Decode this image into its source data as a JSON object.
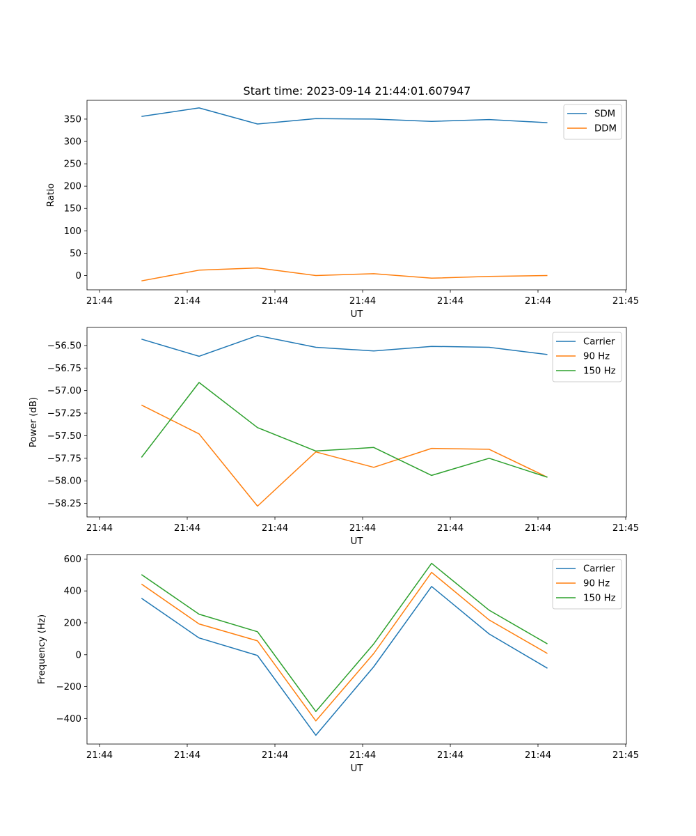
{
  "figure_title": "Start time: 2023-09-14 21:44:01.607947",
  "chart_data": [
    {
      "type": "line",
      "title": "Start time: 2023-09-14 21:44:01.607947",
      "xlabel": "UT",
      "ylabel": "Ratio",
      "x_tick_labels": [
        "21:44",
        "21:44",
        "21:44",
        "21:44",
        "21:44",
        "21:44",
        "21:45"
      ],
      "y_ticks": [
        0,
        50,
        100,
        150,
        200,
        250,
        300,
        350
      ],
      "y_tick_labels": [
        "0",
        "50",
        "100",
        "150",
        "200",
        "250",
        "300",
        "350"
      ],
      "ylim": [
        -32,
        392
      ],
      "legend_position": "top-right",
      "series": [
        {
          "name": "SDM",
          "color": "#1f77b4",
          "values": [
            356,
            375,
            339,
            351,
            350,
            345,
            349,
            342
          ]
        },
        {
          "name": "DDM",
          "color": "#ff7f0e",
          "values": [
            -12,
            12,
            17,
            0,
            4,
            -6,
            -2,
            0
          ]
        }
      ]
    },
    {
      "type": "line",
      "title": "",
      "xlabel": "UT",
      "ylabel": "Power (dB)",
      "x_tick_labels": [
        "21:44",
        "21:44",
        "21:44",
        "21:44",
        "21:44",
        "21:44",
        "21:45"
      ],
      "y_ticks": [
        -56.5,
        -56.75,
        -57.0,
        -57.25,
        -57.5,
        -57.75,
        -58.0,
        -58.25
      ],
      "y_tick_labels": [
        "−56.50",
        "−56.75",
        "−57.00",
        "−57.25",
        "−57.50",
        "−57.75",
        "−58.00",
        "−58.25"
      ],
      "ylim": [
        -58.4,
        -56.3
      ],
      "legend_position": "top-right",
      "series": [
        {
          "name": "Carrier",
          "color": "#1f77b4",
          "values": [
            -56.43,
            -56.62,
            -56.39,
            -56.52,
            -56.56,
            -56.51,
            -56.52,
            -56.6
          ]
        },
        {
          "name": "90 Hz",
          "color": "#ff7f0e",
          "values": [
            -57.16,
            -57.48,
            -58.28,
            -57.68,
            -57.85,
            -57.64,
            -57.65,
            -57.96
          ]
        },
        {
          "name": "150 Hz",
          "color": "#2ca02c",
          "values": [
            -57.74,
            -56.91,
            -57.41,
            -57.67,
            -57.63,
            -57.94,
            -57.75,
            -57.96
          ]
        }
      ]
    },
    {
      "type": "line",
      "title": "",
      "xlabel": "UT",
      "ylabel": "Frequency (Hz)",
      "x_tick_labels": [
        "21:44",
        "21:44",
        "21:44",
        "21:44",
        "21:44",
        "21:44",
        "21:45"
      ],
      "y_ticks": [
        600,
        400,
        200,
        0,
        -200,
        -400
      ],
      "y_tick_labels": [
        "600",
        "400",
        "200",
        "0",
        "−200",
        "−400"
      ],
      "ylim": [
        -560,
        628
      ],
      "legend_position": "top-right",
      "series": [
        {
          "name": "Carrier",
          "color": "#1f77b4",
          "values": [
            354,
            105,
            -5,
            -505,
            -75,
            428,
            130,
            -85
          ]
        },
        {
          "name": "90 Hz",
          "color": "#ff7f0e",
          "values": [
            443,
            193,
            87,
            -415,
            8,
            516,
            218,
            8
          ]
        },
        {
          "name": "150 Hz",
          "color": "#2ca02c",
          "values": [
            502,
            254,
            144,
            -356,
            68,
            573,
            279,
            68
          ]
        }
      ]
    }
  ]
}
